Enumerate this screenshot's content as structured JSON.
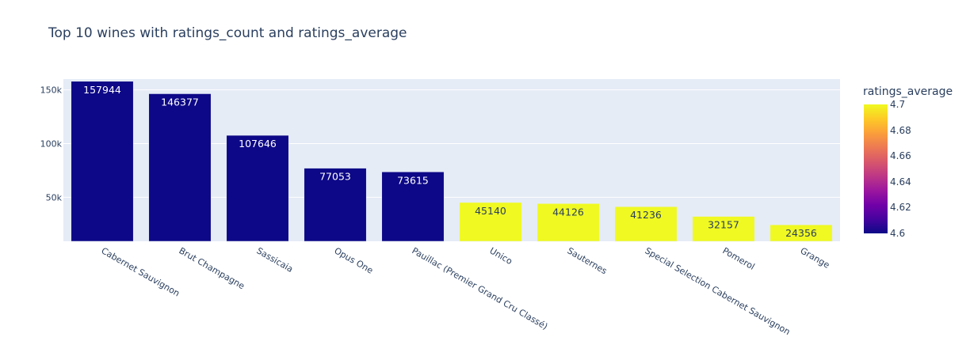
{
  "chart_data": {
    "type": "bar",
    "title": "Top 10 wines with ratings_count and ratings_average",
    "xlabel": "",
    "ylabel": "",
    "categories": [
      "Cabernet Sauvignon",
      "Brut Champagne",
      "Sassicaia",
      "Opus One",
      "Pauillac (Premier Grand Cru Classé)",
      "Unico",
      "Sauternes",
      "Special Selection Cabernet Sauvignon",
      "Pomerol",
      "Grange"
    ],
    "values": [
      157944,
      146377,
      107646,
      77053,
      73615,
      45140,
      44126,
      41236,
      32157,
      24356
    ],
    "color_values": [
      4.6,
      4.6,
      4.6,
      4.6,
      4.6,
      4.7,
      4.7,
      4.7,
      4.7,
      4.7
    ],
    "ylim": [
      9000,
      160000
    ],
    "yticks": [
      50000,
      100000,
      150000
    ],
    "ytick_labels": [
      "50k",
      "100k",
      "150k"
    ],
    "grid": true,
    "colorbar": {
      "title": "ratings_average",
      "range": [
        4.6,
        4.7
      ],
      "ticks": [
        "4.7",
        "4.68",
        "4.66",
        "4.64",
        "4.62",
        "4.6"
      ],
      "colors": [
        "#0d0887",
        "#46039f",
        "#7201a8",
        "#9c179e",
        "#bd3786",
        "#d8576b",
        "#ed7953",
        "#fb9f3a",
        "#fdca26",
        "#f0f921"
      ]
    },
    "legend_placement": "right"
  }
}
